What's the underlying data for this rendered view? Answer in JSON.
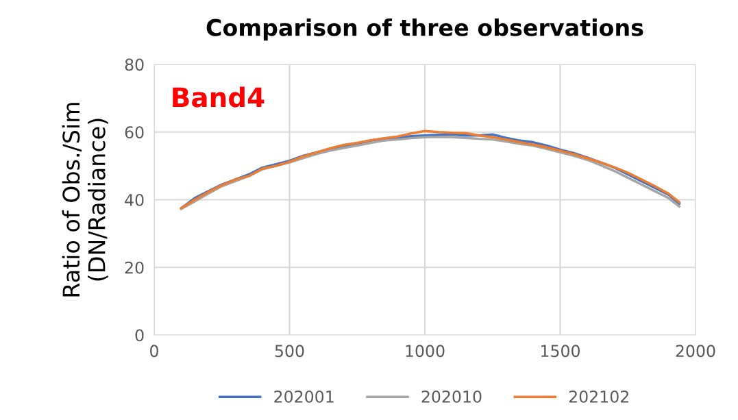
{
  "chart_data": {
    "type": "line",
    "title": "Comparison of three observations",
    "ylabel": "Ratio of Obs./Sim\n(DN/Radiance)",
    "annotations": [
      "Band4"
    ],
    "x": [
      100,
      150,
      200,
      250,
      300,
      350,
      400,
      450,
      500,
      550,
      600,
      650,
      700,
      750,
      800,
      850,
      900,
      950,
      1000,
      1050,
      1100,
      1150,
      1200,
      1250,
      1300,
      1350,
      1400,
      1450,
      1500,
      1550,
      1600,
      1650,
      1700,
      1750,
      1800,
      1850,
      1900,
      1940
    ],
    "series": [
      {
        "name": "202001",
        "color": "#4472c4",
        "values": [
          37.5,
          40.5,
          42.5,
          44.5,
          46,
          47.5,
          49.5,
          50.5,
          51.5,
          53,
          54,
          55,
          55.8,
          56.5,
          57.5,
          58,
          58.3,
          58.8,
          59,
          59.2,
          59.3,
          59,
          59,
          59.3,
          58.3,
          57.5,
          57,
          56,
          54.8,
          53.8,
          52.5,
          51,
          49.5,
          47.5,
          45.5,
          43.5,
          41.5,
          38.8
        ]
      },
      {
        "name": "202010",
        "color": "#a5a5a5",
        "values": [
          37.3,
          39.5,
          41.8,
          44,
          45.5,
          47,
          49,
          50,
          51,
          52.3,
          53.5,
          54.5,
          55.3,
          56,
          56.8,
          57.5,
          57.8,
          58.2,
          58.5,
          58.6,
          58.5,
          58.3,
          58,
          57.8,
          57.2,
          56.5,
          56,
          55,
          54,
          53,
          51.8,
          50.2,
          48.5,
          46.5,
          44.5,
          42.5,
          40.5,
          38
        ]
      },
      {
        "name": "202102",
        "color": "#ed7d31",
        "values": [
          37.5,
          40,
          42.3,
          44.3,
          46,
          47,
          49.2,
          50,
          51.2,
          52.8,
          54,
          55.2,
          56.2,
          56.8,
          57.6,
          58.2,
          58.7,
          59.6,
          60.3,
          60,
          59.8,
          59.7,
          59,
          58.5,
          57.8,
          57,
          56.3,
          55.5,
          54.5,
          53.5,
          52.3,
          51,
          49.6,
          48,
          46,
          44,
          41.8,
          39.3
        ]
      }
    ],
    "xlim": [
      0,
      2000
    ],
    "xticks": [
      0,
      500,
      1000,
      1500,
      2000
    ],
    "ylim": [
      0,
      80
    ],
    "yticks": [
      0,
      20,
      40,
      60,
      80
    ],
    "grid": true,
    "legend": "bottom",
    "line_style": "solid",
    "marker": "none"
  }
}
